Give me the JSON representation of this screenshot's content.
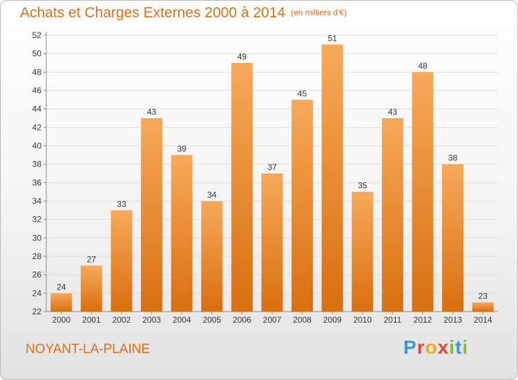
{
  "title": "Achats et Charges Externes 2000 à 2014",
  "subtitle": "(en milliers d'€)",
  "city": "NOYANT-LA-PLAINE",
  "logo": {
    "letters": [
      "P",
      "r",
      "o",
      "x",
      "i",
      "t",
      "i"
    ],
    "colors": [
      "#3a9ad9",
      "#e8432d",
      "#f4a81d",
      "#e8432d",
      "#7dbb3c",
      "#3a9ad9",
      "#7dbb3c"
    ]
  },
  "colors": {
    "bar_top": "#f7a95a",
    "bar_bottom": "#d86f10",
    "accent": "#e06e1b"
  },
  "chart_data": {
    "type": "bar",
    "title": "Achats et Charges Externes 2000 à 2014",
    "subtitle": "(en milliers d'€)",
    "xlabel": "",
    "ylabel": "",
    "categories": [
      "2000",
      "2001",
      "2002",
      "2003",
      "2004",
      "2005",
      "2006",
      "2007",
      "2008",
      "2009",
      "2010",
      "2011",
      "2012",
      "2013",
      "2014"
    ],
    "values": [
      24,
      27,
      33,
      43,
      39,
      34,
      49,
      37,
      45,
      51,
      35,
      43,
      48,
      38,
      23
    ],
    "ylim": [
      22,
      52
    ],
    "yticks": [
      22,
      24,
      26,
      28,
      30,
      32,
      34,
      36,
      38,
      40,
      42,
      44,
      46,
      48,
      50,
      52
    ],
    "grid": true,
    "data_labels": true
  }
}
